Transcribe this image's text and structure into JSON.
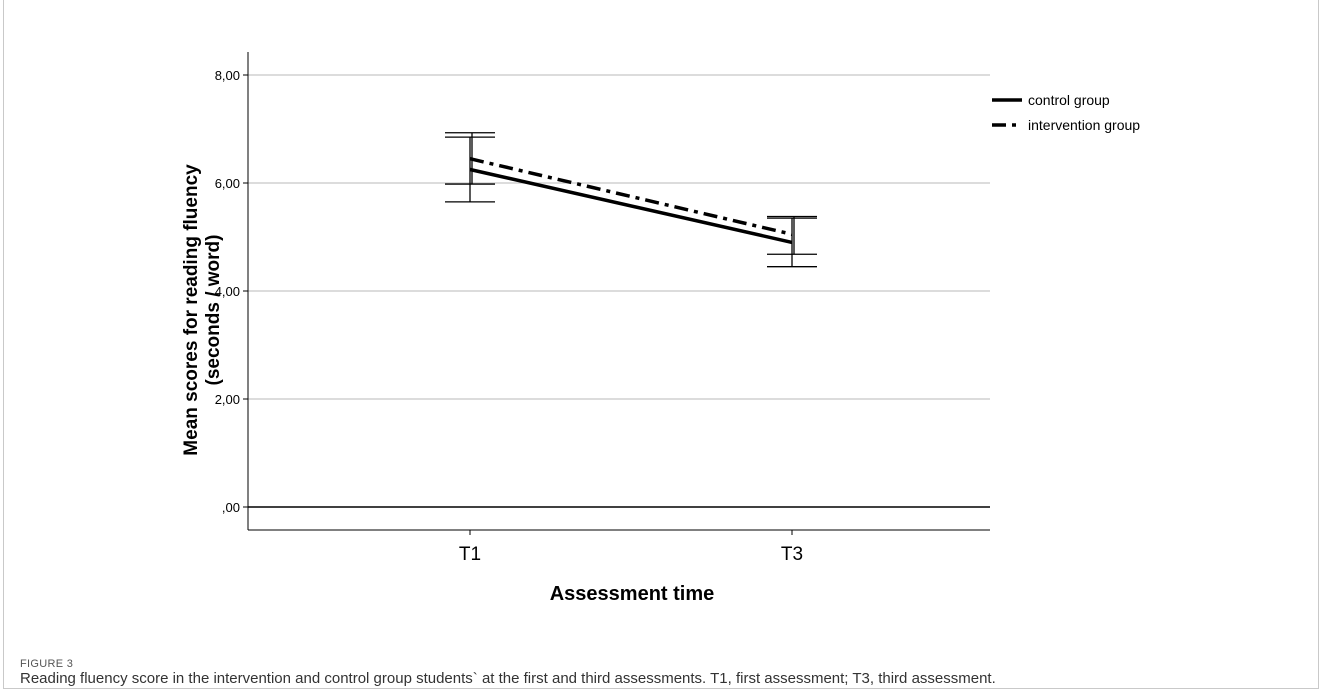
{
  "figure": {
    "label": "FIGURE 3",
    "caption": "Reading fluency score in the intervention and control group students` at the first and third assessments. T1, first assessment; T3, third assessment."
  },
  "chart_data": {
    "type": "line",
    "xlabel": "Assessment time",
    "ylabel_line1": "Mean scores for reading fluency",
    "ylabel_line2": "(seconds / word)",
    "categories": [
      "T1",
      "T3"
    ],
    "ylim": [
      0,
      8
    ],
    "yticks": [
      0,
      2,
      4,
      6,
      8
    ],
    "ytick_labels": [
      ",00",
      "2,00",
      "4,00",
      "6,00",
      "8,00"
    ],
    "grid": true,
    "legend_position": "top-right",
    "series": [
      {
        "name": "control group",
        "style": "solid",
        "color": "#000000",
        "values": [
          6.25,
          4.9
        ],
        "error_low": [
          5.65,
          4.45
        ],
        "error_high": [
          6.85,
          5.35
        ]
      },
      {
        "name": "intervention group",
        "style": "dashdot",
        "color": "#000000",
        "values": [
          6.45,
          5.05
        ],
        "error_low": [
          5.98,
          4.68
        ],
        "error_high": [
          6.93,
          5.38
        ]
      }
    ]
  }
}
